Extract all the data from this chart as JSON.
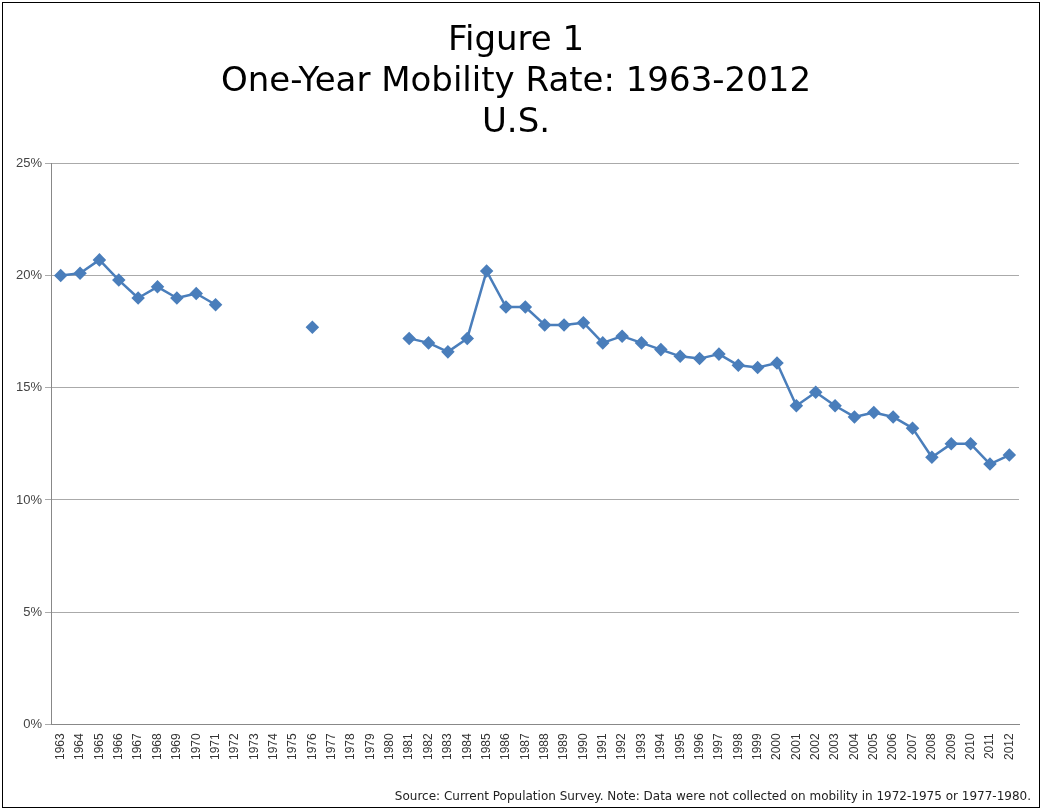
{
  "chart_data": {
    "type": "line",
    "title": "Figure 1\nOne-Year Mobility Rate: 1963-2012\nU.S.",
    "categories": [
      "1963",
      "1964",
      "1965",
      "1966",
      "1967",
      "1968",
      "1969",
      "1970",
      "1971",
      "1972",
      "1973",
      "1974",
      "1975",
      "1976",
      "1977",
      "1978",
      "1979",
      "1980",
      "1981",
      "1982",
      "1983",
      "1984",
      "1985",
      "1986",
      "1987",
      "1988",
      "1989",
      "1990",
      "1991",
      "1992",
      "1993",
      "1994",
      "1995",
      "1996",
      "1997",
      "1998",
      "1999",
      "2000",
      "2001",
      "2002",
      "2003",
      "2004",
      "2005",
      "2006",
      "2007",
      "2008",
      "2009",
      "2010",
      "2011",
      "2012"
    ],
    "series": [
      {
        "color": "#4a7ebb",
        "values": [
          20.0,
          20.1,
          20.7,
          19.8,
          19.0,
          19.5,
          19.0,
          19.2,
          18.7,
          null,
          null,
          null,
          null,
          17.7,
          null,
          null,
          null,
          null,
          17.2,
          17.0,
          16.6,
          17.2,
          20.2,
          18.6,
          18.6,
          17.8,
          17.8,
          17.9,
          17.0,
          17.3,
          17.0,
          16.7,
          16.4,
          16.3,
          16.5,
          16.0,
          15.9,
          16.1,
          14.2,
          14.8,
          14.2,
          13.7,
          13.9,
          13.7,
          13.2,
          11.9,
          12.5,
          12.5,
          11.6,
          12.0
        ]
      }
    ],
    "ylim": [
      0,
      25
    ],
    "yticks": [
      {
        "value": 0,
        "label": "0%"
      },
      {
        "value": 5,
        "label": "5%"
      },
      {
        "value": 10,
        "label": "10%"
      },
      {
        "value": 15,
        "label": "15%"
      },
      {
        "value": 20,
        "label": "20%"
      },
      {
        "value": 25,
        "label": "25%"
      }
    ],
    "grid": "y",
    "legend": false,
    "marker": "diamond",
    "line_style": "solid",
    "annotations": [
      "Source: Current Population Survey.  Note: Data were not collected on mobility in 1972-1975 or 1977-1980."
    ]
  }
}
